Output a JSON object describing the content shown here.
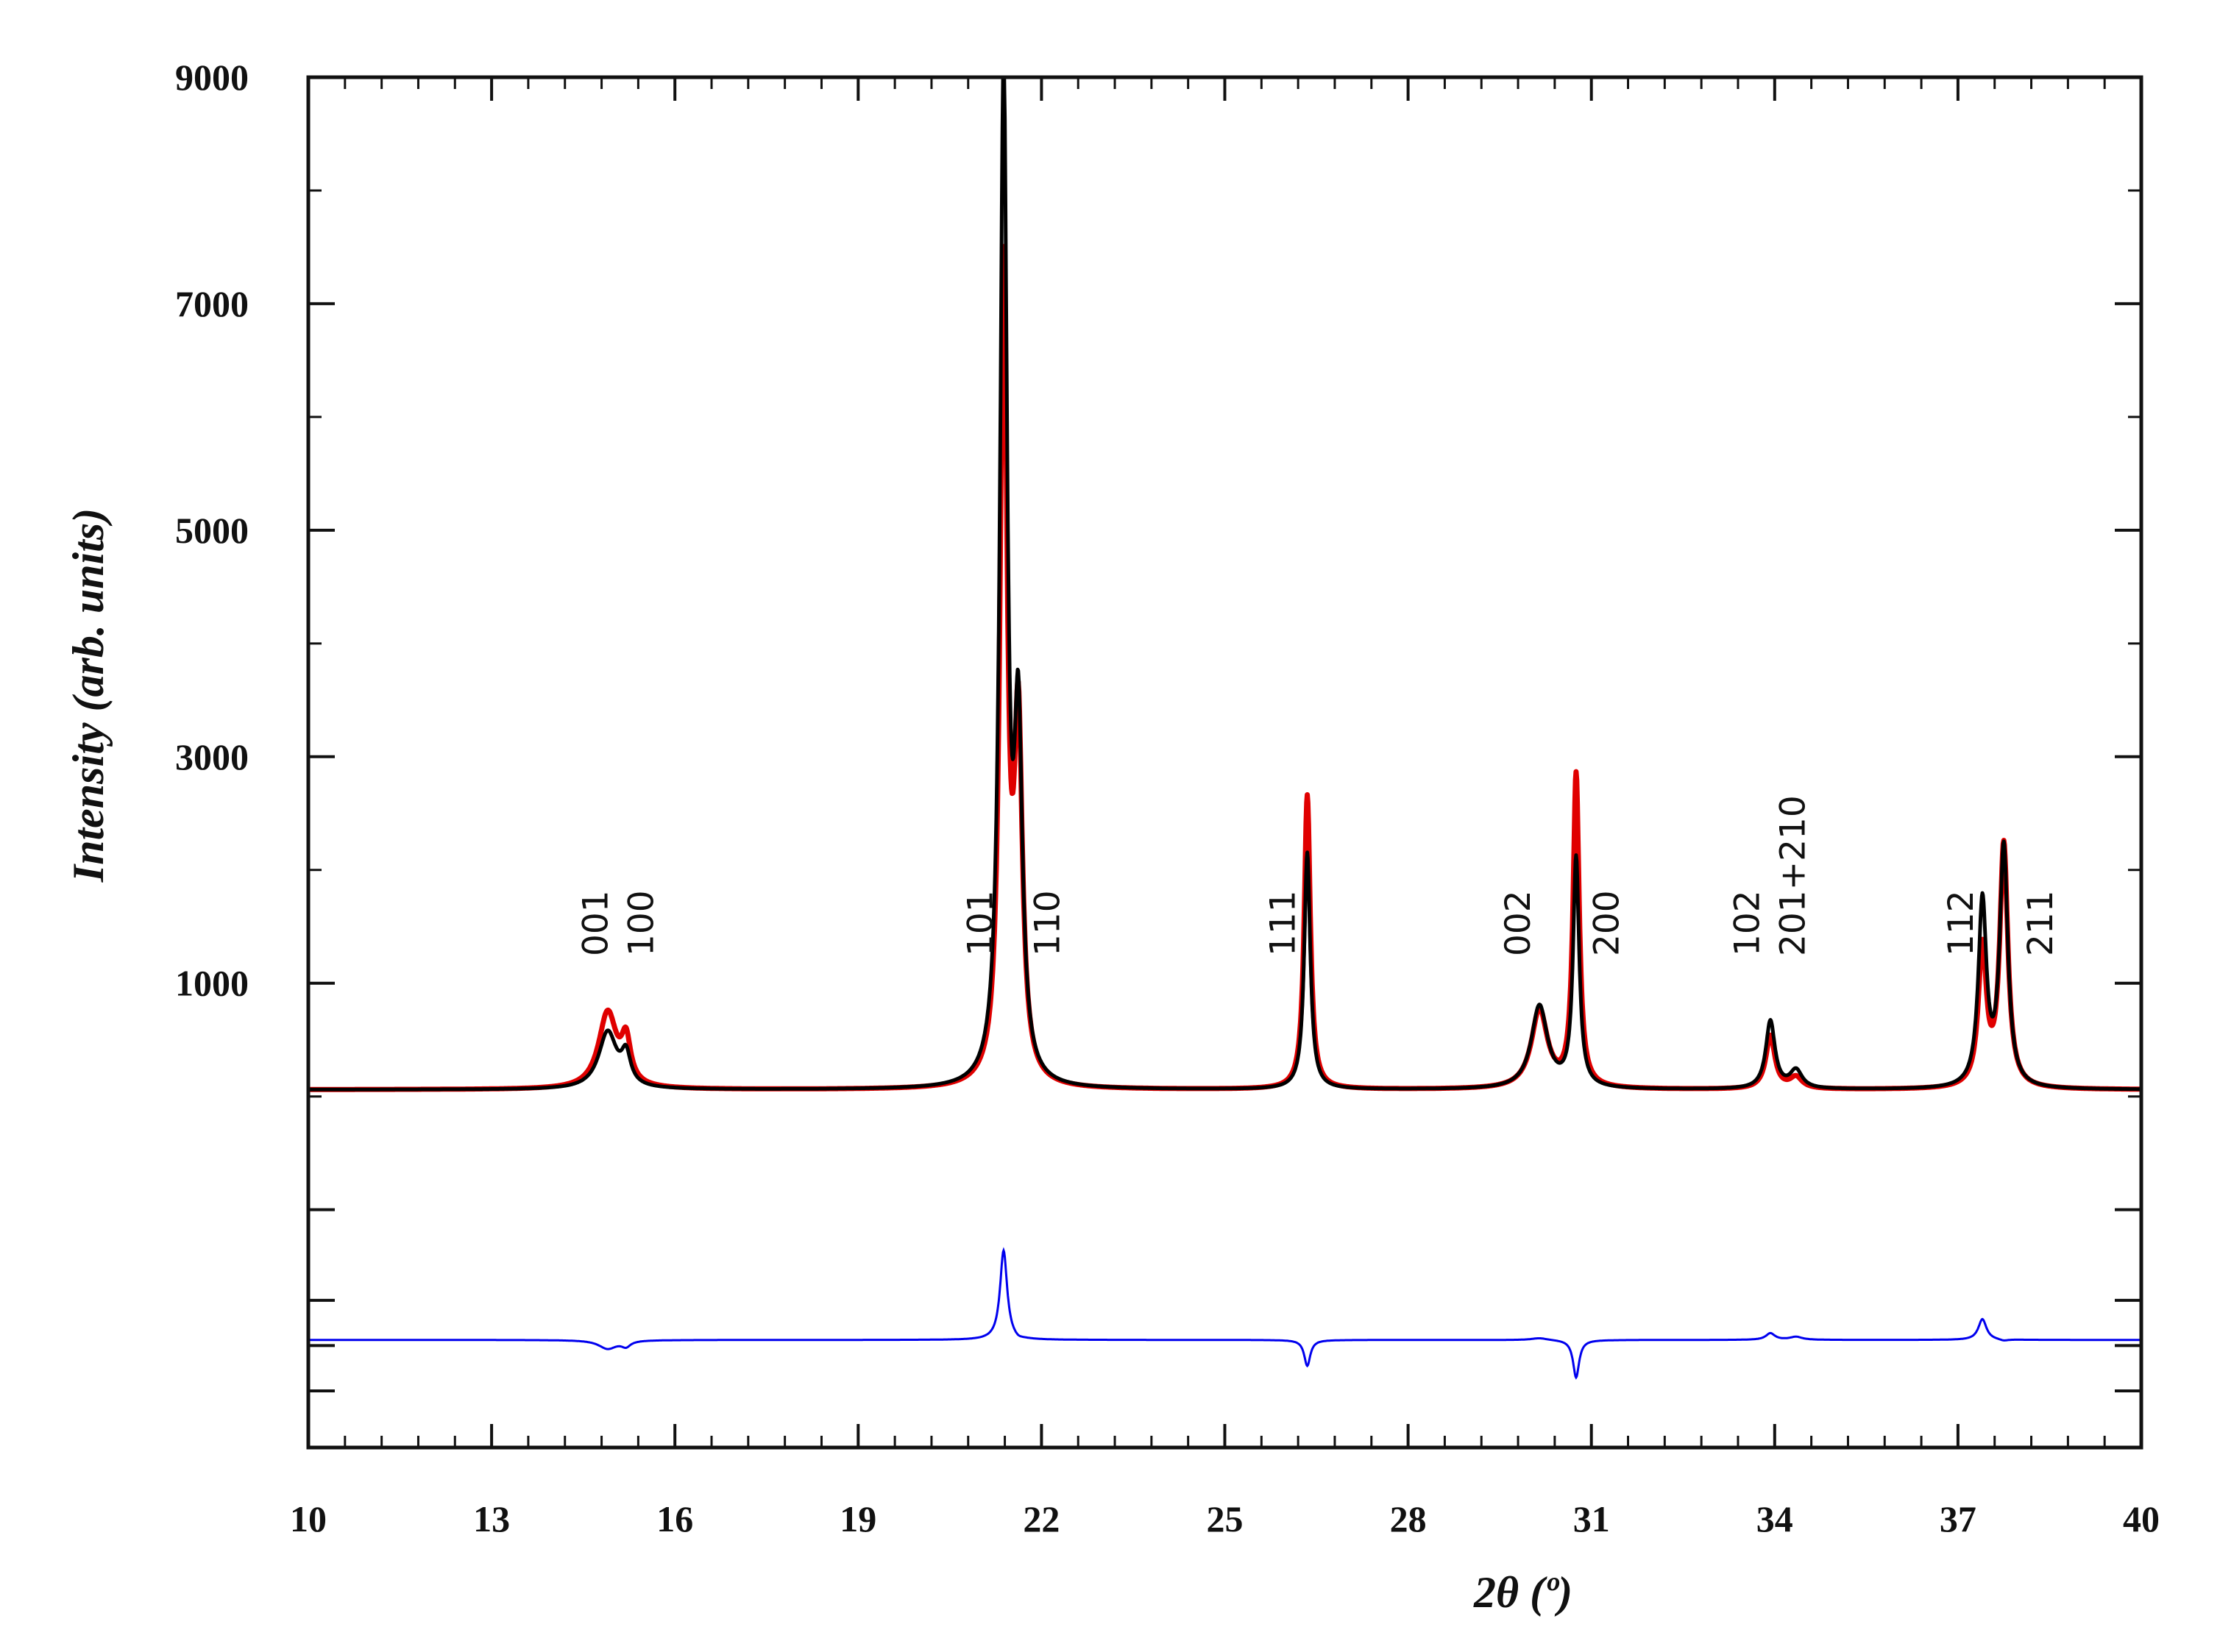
{
  "chart_data": {
    "type": "line",
    "xlabel": "2θ (º)",
    "ylabel": "Intensity (arb. units)",
    "xlim": [
      10,
      40
    ],
    "ylim": [
      -3100,
      9000
    ],
    "x_ticks": [
      10,
      13,
      16,
      19,
      22,
      25,
      28,
      31,
      34,
      37,
      40
    ],
    "y_ticks_labeled": [
      1000,
      3000,
      5000,
      7000,
      9000
    ],
    "y_ticks_unlabeled": [
      -1000,
      -1800,
      -2200,
      -2600
    ],
    "grid": false,
    "baseline": 60,
    "difference_offset": -2150,
    "peaks": [
      {
        "x": 14.9,
        "obs": 560,
        "calc": 730,
        "w": 0.18
      },
      {
        "x": 15.2,
        "obs": 320,
        "calc": 430,
        "w": 0.09
      },
      {
        "x": 21.38,
        "obs": 8960,
        "calc": 7200,
        "w": 0.07
      },
      {
        "x": 21.62,
        "obs": 3060,
        "calc": 3100,
        "w": 0.08
      },
      {
        "x": 26.35,
        "obs": 2150,
        "calc": 2660,
        "w": 0.06
      },
      {
        "x": 30.15,
        "obs": 790,
        "calc": 750,
        "w": 0.16
      },
      {
        "x": 30.75,
        "obs": 2080,
        "calc": 2820,
        "w": 0.06
      },
      {
        "x": 33.93,
        "obs": 660,
        "calc": 530,
        "w": 0.09
      },
      {
        "x": 34.35,
        "obs": 220,
        "calc": 160,
        "w": 0.12
      },
      {
        "x": 37.4,
        "obs": 1690,
        "calc": 1280,
        "w": 0.08
      },
      {
        "x": 37.75,
        "obs": 2170,
        "calc": 2200,
        "w": 0.08
      }
    ],
    "series": [
      {
        "name": "",
        "color": "#e00000",
        "role": "calculated"
      },
      {
        "name": "",
        "color": "#000000",
        "role": "observed"
      },
      {
        "name": "",
        "color": "#0000ee",
        "role": "difference"
      }
    ],
    "annotations": [
      {
        "text": "001",
        "x": 14.7
      },
      {
        "text": "100",
        "x": 15.45
      },
      {
        "text": "101",
        "x": 21.0
      },
      {
        "text": "110",
        "x": 22.1
      },
      {
        "text": "111",
        "x": 25.95
      },
      {
        "text": "002",
        "x": 29.8
      },
      {
        "text": "200",
        "x": 31.25
      },
      {
        "text": "102",
        "x": 33.55
      },
      {
        "text": "201+210",
        "x": 34.3
      },
      {
        "text": "112",
        "x": 37.05
      },
      {
        "text": "211",
        "x": 38.35
      }
    ]
  }
}
